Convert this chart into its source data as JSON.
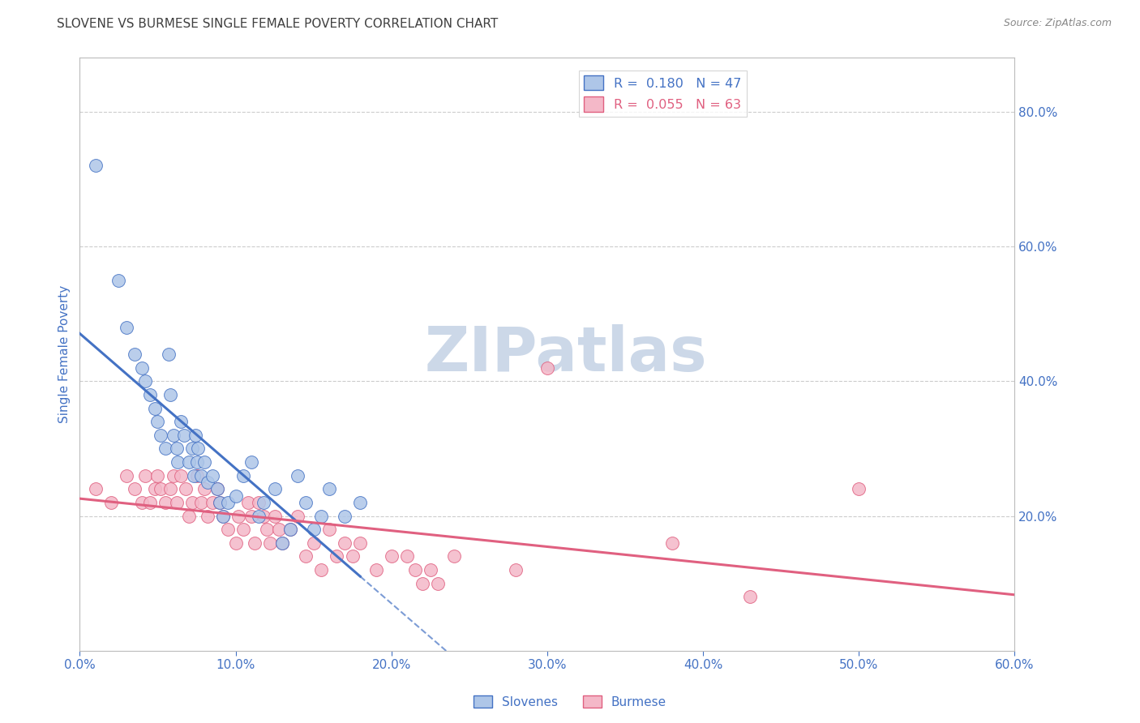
{
  "title": "SLOVENE VS BURMESE SINGLE FEMALE POVERTY CORRELATION CHART",
  "source": "Source: ZipAtlas.com",
  "ylabel": "Single Female Poverty",
  "right_yticks": [
    "80.0%",
    "60.0%",
    "40.0%",
    "20.0%"
  ],
  "right_ytick_vals": [
    0.8,
    0.6,
    0.4,
    0.2
  ],
  "legend_slovene_r": "R =  0.180",
  "legend_slovene_n": "N = 47",
  "legend_burmese_r": "R =  0.055",
  "legend_burmese_n": "N = 63",
  "slovene_color": "#aec6e8",
  "slovene_line_color": "#4472c4",
  "burmese_color": "#f4b8c8",
  "burmese_line_color": "#e06080",
  "background_color": "#ffffff",
  "grid_color": "#cccccc",
  "title_color": "#404040",
  "watermark": "ZIPatlas",
  "watermark_color": "#ccd8e8",
  "slovene_x": [
    0.01,
    0.025,
    0.03,
    0.035,
    0.04,
    0.042,
    0.045,
    0.048,
    0.05,
    0.052,
    0.055,
    0.057,
    0.058,
    0.06,
    0.062,
    0.063,
    0.065,
    0.067,
    0.07,
    0.072,
    0.073,
    0.074,
    0.075,
    0.076,
    0.078,
    0.08,
    0.082,
    0.085,
    0.088,
    0.09,
    0.092,
    0.095,
    0.1,
    0.105,
    0.11,
    0.115,
    0.118,
    0.125,
    0.13,
    0.135,
    0.14,
    0.145,
    0.15,
    0.155,
    0.16,
    0.17,
    0.18
  ],
  "slovene_y": [
    0.72,
    0.55,
    0.48,
    0.44,
    0.42,
    0.4,
    0.38,
    0.36,
    0.34,
    0.32,
    0.3,
    0.44,
    0.38,
    0.32,
    0.3,
    0.28,
    0.34,
    0.32,
    0.28,
    0.3,
    0.26,
    0.32,
    0.28,
    0.3,
    0.26,
    0.28,
    0.25,
    0.26,
    0.24,
    0.22,
    0.2,
    0.22,
    0.23,
    0.26,
    0.28,
    0.2,
    0.22,
    0.24,
    0.16,
    0.18,
    0.26,
    0.22,
    0.18,
    0.2,
    0.24,
    0.2,
    0.22
  ],
  "burmese_x": [
    0.01,
    0.02,
    0.03,
    0.035,
    0.04,
    0.042,
    0.045,
    0.048,
    0.05,
    0.052,
    0.055,
    0.058,
    0.06,
    0.062,
    0.065,
    0.068,
    0.07,
    0.072,
    0.075,
    0.078,
    0.08,
    0.082,
    0.085,
    0.088,
    0.09,
    0.092,
    0.095,
    0.1,
    0.102,
    0.105,
    0.108,
    0.11,
    0.112,
    0.115,
    0.118,
    0.12,
    0.122,
    0.125,
    0.128,
    0.13,
    0.135,
    0.14,
    0.145,
    0.15,
    0.155,
    0.16,
    0.165,
    0.17,
    0.175,
    0.18,
    0.19,
    0.2,
    0.21,
    0.215,
    0.22,
    0.225,
    0.23,
    0.24,
    0.28,
    0.3,
    0.38,
    0.43,
    0.5
  ],
  "burmese_y": [
    0.24,
    0.22,
    0.26,
    0.24,
    0.22,
    0.26,
    0.22,
    0.24,
    0.26,
    0.24,
    0.22,
    0.24,
    0.26,
    0.22,
    0.26,
    0.24,
    0.2,
    0.22,
    0.26,
    0.22,
    0.24,
    0.2,
    0.22,
    0.24,
    0.22,
    0.2,
    0.18,
    0.16,
    0.2,
    0.18,
    0.22,
    0.2,
    0.16,
    0.22,
    0.2,
    0.18,
    0.16,
    0.2,
    0.18,
    0.16,
    0.18,
    0.2,
    0.14,
    0.16,
    0.12,
    0.18,
    0.14,
    0.16,
    0.14,
    0.16,
    0.12,
    0.14,
    0.14,
    0.12,
    0.1,
    0.12,
    0.1,
    0.14,
    0.12,
    0.42,
    0.16,
    0.08,
    0.24
  ],
  "xlim": [
    0.0,
    0.6
  ],
  "ylim": [
    0.0,
    0.88
  ],
  "xtick_vals": [
    0.0,
    0.1,
    0.2,
    0.3,
    0.4,
    0.5,
    0.6
  ],
  "xticklabels": [
    "0.0%",
    "10.0%",
    "20.0%",
    "30.0%",
    "40.0%",
    "50.0%",
    "60.0%"
  ],
  "tick_color": "#4472c4",
  "axis_color": "#4472c4"
}
